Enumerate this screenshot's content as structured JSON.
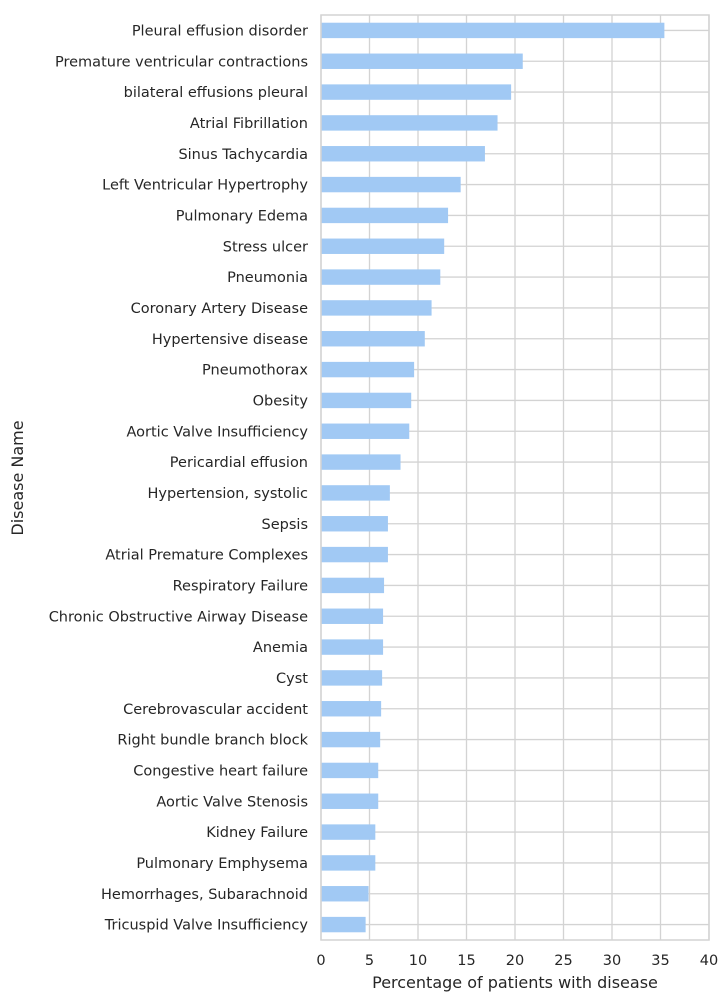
{
  "chart_data": {
    "type": "bar",
    "orientation": "horizontal",
    "xlabel": "Percentage of patients with disease",
    "ylabel": "Disease Name",
    "xlim": [
      0,
      40
    ],
    "xticks": [
      0,
      5,
      10,
      15,
      20,
      25,
      30,
      35,
      40
    ],
    "grid": true,
    "bar_color": "#a1c9f4",
    "categories": [
      "Pleural effusion disorder",
      "Premature ventricular contractions",
      "bilateral effusions pleural",
      "Atrial Fibrillation",
      "Sinus Tachycardia",
      "Left Ventricular Hypertrophy",
      "Pulmonary Edema",
      "Stress ulcer",
      "Pneumonia",
      "Coronary Artery Disease",
      "Hypertensive disease",
      "Pneumothorax",
      "Obesity",
      "Aortic Valve Insufficiency",
      "Pericardial effusion",
      "Hypertension, systolic",
      "Sepsis",
      "Atrial Premature Complexes",
      "Respiratory Failure",
      "Chronic Obstructive Airway Disease",
      "Anemia",
      "Cyst",
      "Cerebrovascular accident",
      "Right bundle branch block",
      "Congestive heart failure",
      "Aortic Valve Stenosis",
      "Kidney Failure",
      "Pulmonary Emphysema",
      "Hemorrhages, Subarachnoid",
      "Tricuspid Valve Insufficiency"
    ],
    "values": [
      35.4,
      20.8,
      19.6,
      18.2,
      16.9,
      14.4,
      13.1,
      12.7,
      12.3,
      11.4,
      10.7,
      9.6,
      9.3,
      9.1,
      8.2,
      7.1,
      6.9,
      6.9,
      6.5,
      6.4,
      6.4,
      6.3,
      6.2,
      6.1,
      5.9,
      5.9,
      5.6,
      5.6,
      4.9,
      4.6
    ]
  }
}
